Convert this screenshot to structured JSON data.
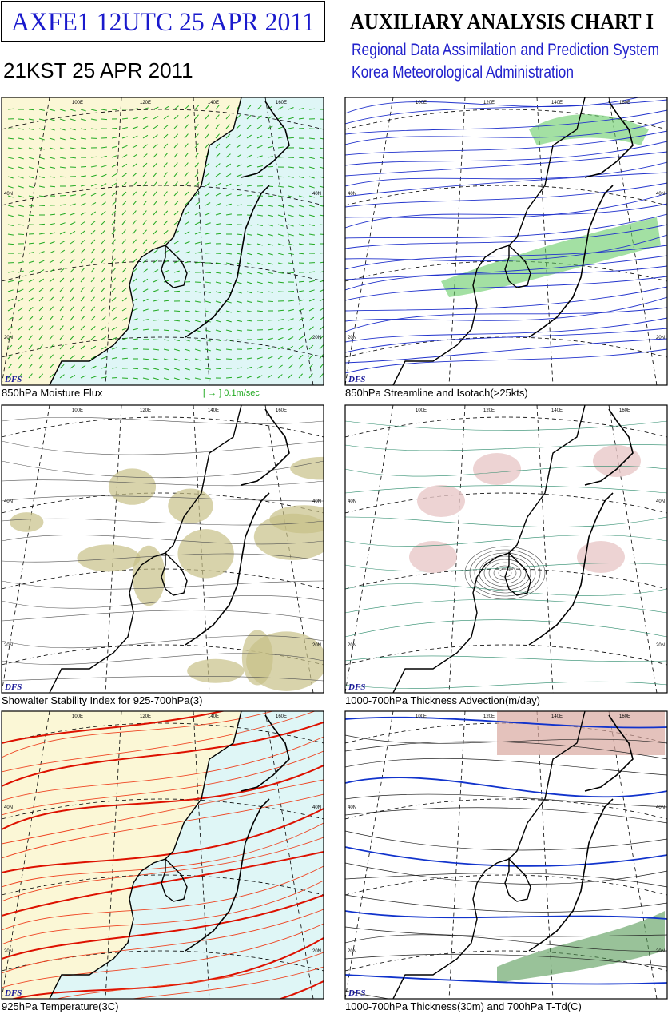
{
  "header": {
    "product": "AXFE1  12UTC 25 APR 2011",
    "local_time": "21KST 25 APR 2011",
    "title": "AUXILIARY ANALYSIS CHART I",
    "subtitle_1": "Regional Data Assimilation and Prediction System",
    "subtitle_2": "Korea Meteorological Administration"
  },
  "panels": [
    {
      "caption": "850hPa Moisture Flux",
      "legend": "[  →  ] 0.1m/sec",
      "stamp": "DFS",
      "lon_labels": [
        "100E",
        "120E",
        "140E",
        "160E"
      ],
      "lat_labels": [
        "40N",
        "20N"
      ]
    },
    {
      "caption": "850hPa Streamline and Isotach(>25kts)",
      "stamp": "DFS",
      "lon_labels": [
        "100E",
        "120E",
        "140E",
        "160E"
      ],
      "lat_labels": [
        "40N",
        "20N"
      ]
    },
    {
      "caption": "Showalter Stability Index for 925-700hPa(3)",
      "stamp": "DFS",
      "lon_labels": [
        "100E",
        "120E",
        "140E",
        "160E"
      ],
      "lat_labels": [
        "40N",
        "20N"
      ]
    },
    {
      "caption": "1000-700hPa Thickness Advection(m/day)",
      "stamp": "DFS",
      "lon_labels": [
        "100E",
        "120E",
        "140E",
        "160E"
      ],
      "lat_labels": [
        "40N",
        "20N"
      ]
    },
    {
      "caption": "925hPa Temperature(3C)",
      "stamp": "DFS",
      "lon_labels": [
        "100E",
        "120E",
        "140E",
        "160E"
      ],
      "lat_labels": [
        "40N",
        "20N"
      ]
    },
    {
      "caption": "1000-700hPa Thickness(30m) and 700hPa T-Td(C)",
      "stamp": "DFS",
      "lon_labels": [
        "100E",
        "120E",
        "140E",
        "160E"
      ],
      "lat_labels": [
        "40N",
        "20N"
      ]
    }
  ]
}
